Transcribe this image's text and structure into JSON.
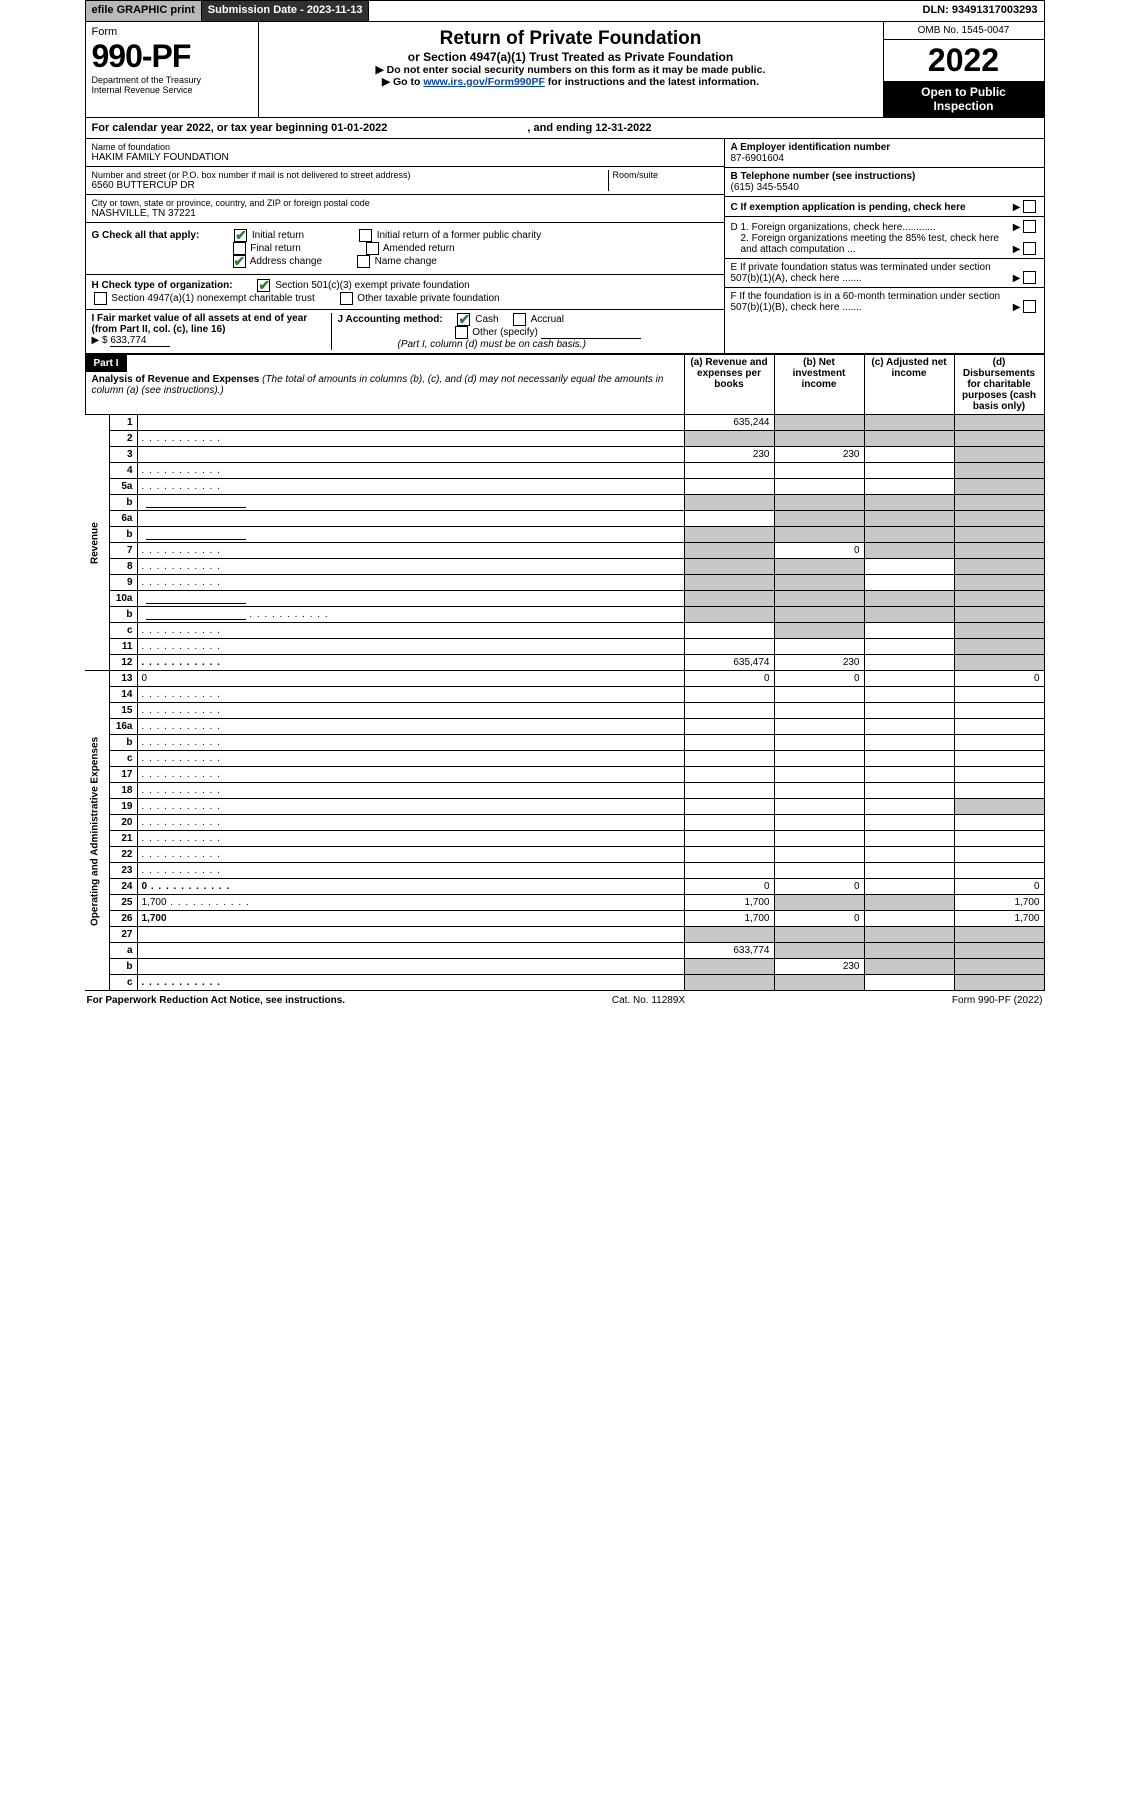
{
  "topbar": {
    "efile": "efile GRAPHIC print",
    "submission": "Submission Date - 2023-11-13",
    "dln": "DLN: 93491317003293"
  },
  "header": {
    "form_word": "Form",
    "form_num": "990-PF",
    "dept1": "Department of the Treasury",
    "dept2": "Internal Revenue Service",
    "title": "Return of Private Foundation",
    "subtitle1": "or Section 4947(a)(1) Trust Treated as Private Foundation",
    "subtitle2": "▶ Do not enter social security numbers on this form as it may be made public.",
    "subtitle3": "▶ Go to ",
    "link": "www.irs.gov/Form990PF",
    "subtitle3b": " for instructions and the latest information.",
    "omb": "OMB No. 1545-0047",
    "year": "2022",
    "inspect1": "Open to Public",
    "inspect2": "Inspection"
  },
  "cal": {
    "text_a": "For calendar year 2022, or tax year beginning 01-01-2022",
    "text_b": ", and ending 12-31-2022"
  },
  "foundation": {
    "name_lbl": "Name of foundation",
    "name": "HAKIM FAMILY FOUNDATION",
    "addr_lbl": "Number and street (or P.O. box number if mail is not delivered to street address)",
    "addr": "6560 BUTTERCUP DR",
    "room_lbl": "Room/suite",
    "city_lbl": "City or town, state or province, country, and ZIP or foreign postal code",
    "city": "NASHVILLE, TN  37221",
    "ein_lbl": "A Employer identification number",
    "ein": "87-6901604",
    "tel_lbl": "B Telephone number (see instructions)",
    "tel": "(615) 345-5540",
    "c_lbl": "C If exemption application is pending, check here"
  },
  "checks": {
    "g_lbl": "G Check all that apply:",
    "initial": "Initial return",
    "initial_former": "Initial return of a former public charity",
    "final": "Final return",
    "amended": "Amended return",
    "addr_change": "Address change",
    "name_change": "Name change",
    "h_lbl": "H Check type of organization:",
    "h_501c3": "Section 501(c)(3) exempt private foundation",
    "h_4947": "Section 4947(a)(1) nonexempt charitable trust",
    "h_other_tax": "Other taxable private foundation",
    "i_lbl": "I Fair market value of all assets at end of year (from Part II, col. (c), line 16)",
    "i_val": "633,774",
    "j_lbl": "J Accounting method:",
    "j_cash": "Cash",
    "j_accrual": "Accrual",
    "j_other": "Other (specify)",
    "j_note": "(Part I, column (d) must be on cash basis.)",
    "d1": "D 1. Foreign organizations, check here............",
    "d2": "2. Foreign organizations meeting the 85% test, check here and attach computation  ...",
    "e": "E  If private foundation status was terminated under section 507(b)(1)(A), check here .......",
    "f": "F  If the foundation is in a 60-month termination under section 507(b)(1)(B), check here .......",
    "arrow": "▶",
    "dollar": "▶ $"
  },
  "part1": {
    "label": "Part I",
    "title": "Analysis of Revenue and Expenses",
    "title_note": " (The total of amounts in columns (b), (c), and (d) may not necessarily equal the amounts in column (a) (see instructions).)",
    "col_a": "(a)    Revenue and expenses per books",
    "col_b": "(b)    Net investment income",
    "col_c": "(c)    Adjusted net income",
    "col_d": "(d)    Disbursements for charitable purposes (cash basis only)"
  },
  "side_labels": {
    "rev": "Revenue",
    "exp": "Operating and Administrative Expenses"
  },
  "rows": [
    {
      "n": "1",
      "d": "",
      "a": "635,244",
      "b": "",
      "c": "",
      "gray_b": true,
      "gray_c": true,
      "gray_d": true
    },
    {
      "n": "2",
      "d": "",
      "a": "",
      "b": "",
      "c": "",
      "gray_a": true,
      "gray_b": true,
      "gray_c": true,
      "gray_d": true,
      "dots": true
    },
    {
      "n": "3",
      "d": "",
      "a": "230",
      "b": "230",
      "c": "",
      "gray_d": true
    },
    {
      "n": "4",
      "d": "",
      "a": "",
      "b": "",
      "c": "",
      "gray_d": true,
      "dots": true
    },
    {
      "n": "5a",
      "d": "",
      "a": "",
      "b": "",
      "c": "",
      "gray_d": true,
      "dots": true
    },
    {
      "n": "b",
      "d": "",
      "a": "",
      "b": "",
      "c": "",
      "gray_a": true,
      "gray_b": true,
      "gray_c": true,
      "gray_d": true,
      "hasline": true
    },
    {
      "n": "6a",
      "d": "",
      "a": "",
      "b": "",
      "c": "",
      "gray_b": true,
      "gray_c": true,
      "gray_d": true
    },
    {
      "n": "b",
      "d": "",
      "a": "",
      "b": "",
      "c": "",
      "gray_a": true,
      "gray_b": true,
      "gray_c": true,
      "gray_d": true,
      "hasline": true
    },
    {
      "n": "7",
      "d": "",
      "a": "",
      "b": "0",
      "c": "",
      "gray_a": true,
      "gray_c": true,
      "gray_d": true,
      "dots": true
    },
    {
      "n": "8",
      "d": "",
      "a": "",
      "b": "",
      "c": "",
      "gray_a": true,
      "gray_b": true,
      "gray_d": true,
      "dots": true
    },
    {
      "n": "9",
      "d": "",
      "a": "",
      "b": "",
      "c": "",
      "gray_a": true,
      "gray_b": true,
      "gray_d": true,
      "dots": true
    },
    {
      "n": "10a",
      "d": "",
      "a": "",
      "b": "",
      "c": "",
      "gray_a": true,
      "gray_b": true,
      "gray_c": true,
      "gray_d": true,
      "hasline": true
    },
    {
      "n": "b",
      "d": "",
      "a": "",
      "b": "",
      "c": "",
      "gray_a": true,
      "gray_b": true,
      "gray_c": true,
      "gray_d": true,
      "dots": true,
      "hasline": true
    },
    {
      "n": "c",
      "d": "",
      "a": "",
      "b": "",
      "c": "",
      "gray_b": true,
      "gray_d": true,
      "dots": true
    },
    {
      "n": "11",
      "d": "",
      "a": "",
      "b": "",
      "c": "",
      "gray_d": true,
      "dots": true
    },
    {
      "n": "12",
      "d": "",
      "a": "635,474",
      "b": "230",
      "c": "",
      "bold": true,
      "gray_d": true,
      "dots": true
    },
    {
      "n": "13",
      "d": "0",
      "a": "0",
      "b": "0",
      "c": ""
    },
    {
      "n": "14",
      "d": "",
      "a": "",
      "b": "",
      "c": "",
      "dots": true
    },
    {
      "n": "15",
      "d": "",
      "a": "",
      "b": "",
      "c": "",
      "dots": true
    },
    {
      "n": "16a",
      "d": "",
      "a": "",
      "b": "",
      "c": "",
      "dots": true
    },
    {
      "n": "b",
      "d": "",
      "a": "",
      "b": "",
      "c": "",
      "dots": true
    },
    {
      "n": "c",
      "d": "",
      "a": "",
      "b": "",
      "c": "",
      "dots": true
    },
    {
      "n": "17",
      "d": "",
      "a": "",
      "b": "",
      "c": "",
      "dots": true
    },
    {
      "n": "18",
      "d": "",
      "a": "",
      "b": "",
      "c": "",
      "dots": true
    },
    {
      "n": "19",
      "d": "",
      "a": "",
      "b": "",
      "c": "",
      "gray_d": true,
      "dots": true
    },
    {
      "n": "20",
      "d": "",
      "a": "",
      "b": "",
      "c": "",
      "dots": true
    },
    {
      "n": "21",
      "d": "",
      "a": "",
      "b": "",
      "c": "",
      "dots": true
    },
    {
      "n": "22",
      "d": "",
      "a": "",
      "b": "",
      "c": "",
      "dots": true
    },
    {
      "n": "23",
      "d": "",
      "a": "",
      "b": "",
      "c": "",
      "dots": true
    },
    {
      "n": "24",
      "d": "0",
      "a": "0",
      "b": "0",
      "c": "",
      "bold": true,
      "dots": true
    },
    {
      "n": "25",
      "d": "1,700",
      "a": "1,700",
      "b": "",
      "c": "",
      "gray_b": true,
      "gray_c": true,
      "dots": true
    },
    {
      "n": "26",
      "d": "1,700",
      "a": "1,700",
      "b": "0",
      "c": "",
      "bold": true
    },
    {
      "n": "27",
      "d": "",
      "a": "",
      "b": "",
      "c": "",
      "gray_a": true,
      "gray_b": true,
      "gray_c": true,
      "gray_d": true
    },
    {
      "n": "a",
      "d": "",
      "a": "633,774",
      "b": "",
      "c": "",
      "bold": true,
      "gray_b": true,
      "gray_c": true,
      "gray_d": true
    },
    {
      "n": "b",
      "d": "",
      "a": "",
      "b": "230",
      "c": "",
      "bold": true,
      "gray_a": true,
      "gray_c": true,
      "gray_d": true
    },
    {
      "n": "c",
      "d": "",
      "a": "",
      "b": "",
      "c": "",
      "bold": true,
      "gray_a": true,
      "gray_b": true,
      "gray_d": true,
      "dots": true
    }
  ],
  "footer": {
    "l": "For Paperwork Reduction Act Notice, see instructions.",
    "m": "Cat. No. 11289X",
    "r": "Form 990-PF (2022)"
  }
}
